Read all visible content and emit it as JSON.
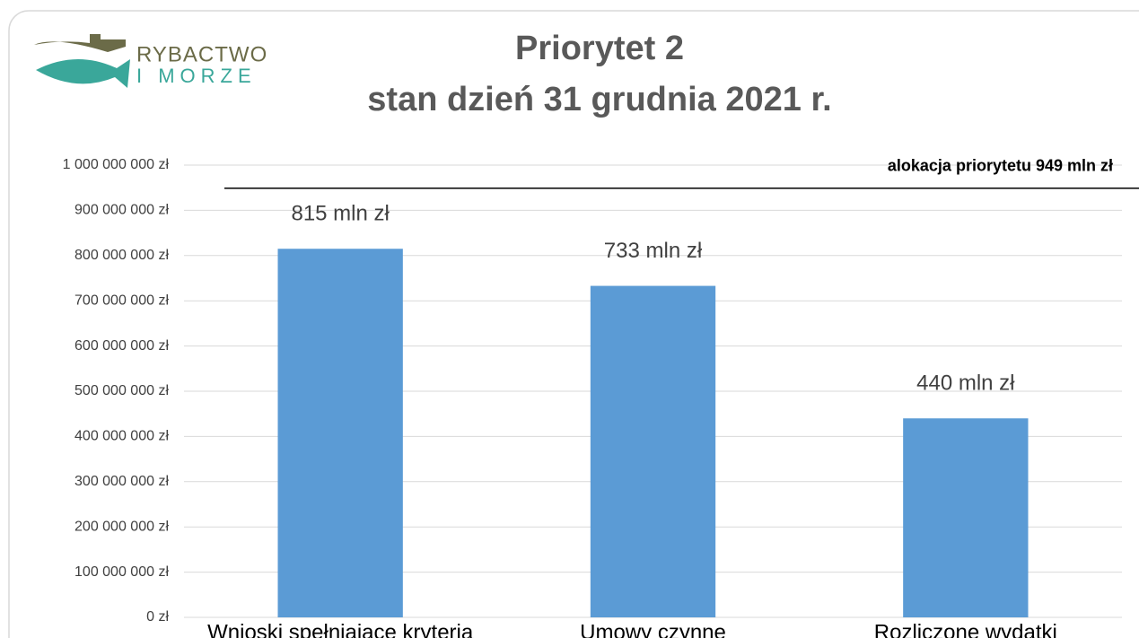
{
  "logo": {
    "line1": "RYBACTWO",
    "line2": "I MORZE"
  },
  "chart_data": {
    "type": "bar",
    "title": "Priorytet 2",
    "subtitle": "stan dzień 31 grudnia 2021 r.",
    "categories": [
      "Wnioski spełniające kryteria",
      "Umowy  czynne",
      "Rozliczone wydatki"
    ],
    "values": [
      815000000,
      733000000,
      440000000
    ],
    "value_labels": [
      "815 mln zł",
      "733 mln zł",
      "440 mln zł"
    ],
    "color": "#5b9bd5",
    "ylim": [
      0,
      1000000000
    ],
    "yticks": [
      {
        "value": 0,
        "label": "0 zł"
      },
      {
        "value": 100000000,
        "label": "100 000 000 zł"
      },
      {
        "value": 200000000,
        "label": "200 000 000 zł"
      },
      {
        "value": 300000000,
        "label": "300 000 000 zł"
      },
      {
        "value": 400000000,
        "label": "400 000 000 zł"
      },
      {
        "value": 500000000,
        "label": "500 000 000 zł"
      },
      {
        "value": 600000000,
        "label": "600 000 000 zł"
      },
      {
        "value": 700000000,
        "label": "700 000 000 zł"
      },
      {
        "value": 800000000,
        "label": "800 000 000 zł"
      },
      {
        "value": 900000000,
        "label": "900 000 000 zł"
      },
      {
        "value": 1000000000,
        "label": "1 000 000 000 zł"
      }
    ],
    "grid": true,
    "reference_line": {
      "value": 949000000,
      "label": "alokacja priorytetu 949 mln zł"
    }
  }
}
